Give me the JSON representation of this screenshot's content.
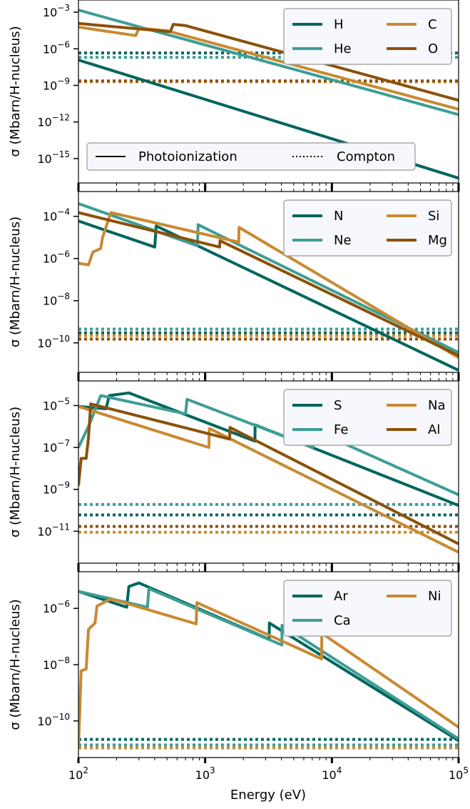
{
  "colors": {
    "teal_dark": "#00665e",
    "teal": "#3d9e96",
    "gold": "#c98a32",
    "brown": "#8c510a"
  },
  "x_axis_label": "Energy (eV)",
  "x_tick_labels": [
    "10",
    "10",
    "10",
    "10"
  ],
  "x_tick_exponents": [
    "2",
    "3",
    "4",
    "5"
  ],
  "chart_data": [
    {
      "type": "line",
      "title": "",
      "xlabel": "",
      "ylabel": "σ (Mbarn/H-nucleus)",
      "xscale": "log",
      "yscale": "log",
      "xlim": [
        100,
        100000
      ],
      "ylim": [
        1e-17,
        0.01
      ],
      "yticks": [
        0.001,
        1e-06,
        1e-09,
        1e-12,
        1e-15
      ],
      "ytick_labels": [
        "10",
        "10",
        "10",
        "10",
        "10"
      ],
      "ytick_exponents": [
        "−3",
        "−6",
        "−9",
        "−12",
        "−15"
      ],
      "legend_placement": "upper-right",
      "style_legend": {
        "placement": "lower-left",
        "entries": [
          {
            "label": "Photoionization",
            "style": "solid"
          },
          {
            "label": "Compton",
            "style": "dotted"
          }
        ]
      },
      "series": [
        {
          "name": "H",
          "color": "teal_dark",
          "photo": [
            [
              100,
              1.2e-07
            ],
            [
              100000,
              2.5e-17
            ]
          ],
          "compton": 4.5e-07
        },
        {
          "name": "He",
          "color": "teal",
          "photo": [
            [
              100,
              0.0015
            ],
            [
              100000,
              4e-12
            ]
          ],
          "compton": 2e-07
        },
        {
          "name": "C",
          "color": "gold",
          "photo": [
            [
              100,
              6e-05
            ],
            [
              283,
              1.2e-05
            ],
            [
              300,
              5e-05
            ],
            [
              500,
              3e-05
            ],
            [
              100000,
              1.1e-11
            ]
          ],
          "compton": 2e-09
        },
        {
          "name": "O",
          "color": "brown",
          "photo": [
            [
              100,
              0.00012
            ],
            [
              530,
              2.5e-05
            ],
            [
              560,
              0.0001
            ],
            [
              700,
              8e-05
            ],
            [
              100000,
              6e-11
            ]
          ],
          "compton": 2.3e-09
        }
      ]
    },
    {
      "type": "line",
      "title": "",
      "xlabel": "",
      "ylabel": "σ (Mbarn/H-nucleus)",
      "xscale": "log",
      "yscale": "log",
      "xlim": [
        100,
        100000
      ],
      "ylim": [
        4e-12,
        0.0015
      ],
      "yticks": [
        0.0001,
        1e-06,
        1e-08,
        1e-10
      ],
      "ytick_labels": [
        "10",
        "10",
        "10",
        "10"
      ],
      "ytick_exponents": [
        "−4",
        "−6",
        "−8",
        "−10"
      ],
      "legend_placement": "upper-right",
      "series": [
        {
          "name": "N",
          "color": "teal_dark",
          "photo": [
            [
              100,
              6e-05
            ],
            [
              400,
              3.5e-06
            ],
            [
              410,
              3.5e-05
            ],
            [
              100000,
              5e-12
            ]
          ],
          "compton": 3e-10
        },
        {
          "name": "Ne",
          "color": "teal",
          "photo": [
            [
              100,
              0.0004
            ],
            [
              870,
              4e-06
            ],
            [
              880,
              4e-05
            ],
            [
              100000,
              3.5e-11
            ]
          ],
          "compton": 4.5e-10
        },
        {
          "name": "Si",
          "color": "gold",
          "photo": [
            [
              100,
              6e-07
            ],
            [
              120,
              5e-07
            ],
            [
              130,
              2e-06
            ],
            [
              150,
              3e-06
            ],
            [
              155,
              1e-05
            ],
            [
              180,
              0.00015
            ],
            [
              1840,
              6e-06
            ],
            [
              1850,
              3e-05
            ],
            [
              100000,
              2e-11
            ]
          ],
          "compton": 2.2e-10
        },
        {
          "name": "Mg",
          "color": "brown",
          "photo": [
            [
              100,
              0.00015
            ],
            [
              1300,
              3.5e-06
            ],
            [
              1310,
              7e-06
            ],
            [
              100000,
              2.5e-11
            ]
          ],
          "compton": 1.5e-10
        }
      ]
    },
    {
      "type": "line",
      "title": "",
      "xlabel": "",
      "ylabel": "σ (Mbarn/H-nucleus)",
      "xscale": "log",
      "yscale": "log",
      "xlim": [
        100,
        100000
      ],
      "ylim": [
        3e-13,
        0.00015
      ],
      "yticks": [
        1e-05,
        1e-07,
        1e-09,
        1e-11
      ],
      "ytick_labels": [
        "10",
        "10",
        "10",
        "10"
      ],
      "ytick_exponents": [
        "−5",
        "−7",
        "−9",
        "−11"
      ],
      "legend_placement": "upper-right",
      "series": [
        {
          "name": "S",
          "color": "teal_dark",
          "photo": [
            [
              100,
              9e-06
            ],
            [
              165,
              7e-06
            ],
            [
              175,
              3e-05
            ],
            [
              250,
              4e-05
            ],
            [
              2470,
              2e-07
            ],
            [
              2480,
              1.2e-06
            ],
            [
              100000,
              1.7e-10
            ]
          ],
          "compton": 6e-11
        },
        {
          "name": "Fe",
          "color": "teal",
          "photo": [
            [
              100,
              1e-07
            ],
            [
              120,
              1e-06
            ],
            [
              150,
              3e-05
            ],
            [
              700,
              4e-06
            ],
            [
              720,
              2e-05
            ],
            [
              7100,
              1e-07
            ],
            [
              7120,
              7e-07
            ],
            [
              100000,
              5.5e-10
            ]
          ],
          "compton": 1.9e-10
        },
        {
          "name": "Na",
          "color": "gold",
          "photo": [
            [
              100,
              9e-06
            ],
            [
              1070,
              1e-07
            ],
            [
              1080,
              8e-07
            ],
            [
              100000,
              1e-12
            ]
          ],
          "compton": 9e-12
        },
        {
          "name": "Al",
          "color": "brown",
          "photo": [
            [
              100,
              1.5e-09
            ],
            [
              105,
              3e-08
            ],
            [
              115,
              3e-08
            ],
            [
              120,
              3e-07
            ],
            [
              125,
              1.2e-05
            ],
            [
              1560,
              2.5e-07
            ],
            [
              1570,
              9e-07
            ],
            [
              100000,
              2.5e-12
            ]
          ],
          "compton": 1.7e-11
        }
      ]
    },
    {
      "type": "line",
      "title": "",
      "xlabel": "Energy (eV)",
      "ylabel": "σ (Mbarn/H-nucleus)",
      "xscale": "log",
      "yscale": "log",
      "xlim": [
        100,
        100000
      ],
      "ylim": [
        5e-12,
        2e-05
      ],
      "yticks": [
        1e-06,
        1e-08,
        1e-10
      ],
      "ytick_labels": [
        "10",
        "10",
        "10"
      ],
      "ytick_exponents": [
        "−6",
        "−8",
        "−10"
      ],
      "legend_placement": "upper-right",
      "series": [
        {
          "name": "Ar",
          "color": "teal_dark",
          "photo": [
            [
              100,
              4e-06
            ],
            [
              240,
              1.1e-06
            ],
            [
              250,
              6e-06
            ],
            [
              300,
              8e-06
            ],
            [
              3200,
              8e-08
            ],
            [
              3210,
              3e-07
            ],
            [
              100000,
              2e-11
            ]
          ],
          "compton": 2.2e-11
        },
        {
          "name": "Ca",
          "color": "teal",
          "photo": [
            [
              100,
              4e-06
            ],
            [
              350,
              1.1e-06
            ],
            [
              360,
              5e-06
            ],
            [
              4030,
              5e-08
            ],
            [
              4040,
              2.5e-07
            ],
            [
              100000,
              2.3e-11
            ]
          ],
          "compton": 1.4e-11
        },
        {
          "name": "Ni",
          "color": "gold",
          "photo": [
            [
              100,
              1e-11
            ],
            [
              105,
              6e-09
            ],
            [
              115,
              7e-09
            ],
            [
              120,
              1.8e-07
            ],
            [
              135,
              3e-07
            ],
            [
              140,
              1.2e-06
            ],
            [
              180,
              2.2e-06
            ],
            [
              850,
              2.8e-07
            ],
            [
              860,
              1.6e-06
            ],
            [
              8300,
              1.6e-08
            ],
            [
              8330,
              1.3e-07
            ],
            [
              100000,
              6e-11
            ]
          ],
          "compton": 1.1e-11
        }
      ]
    }
  ]
}
